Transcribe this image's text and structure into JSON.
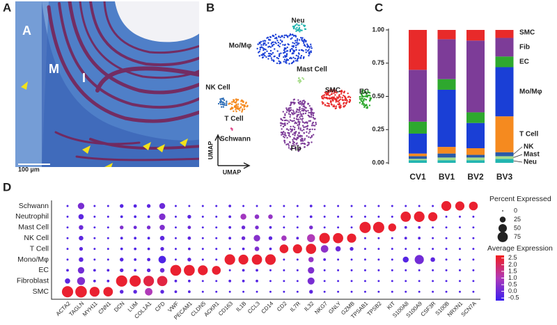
{
  "panel_labels": [
    "A",
    "B",
    "C",
    "D"
  ],
  "histology": {
    "labels": [
      "A",
      "M",
      "I"
    ],
    "scale_bar": "100 µm"
  },
  "chart_data": [
    {
      "type": "umap",
      "x_label": "UMAP",
      "y_label": "UMAP",
      "clusters": [
        {
          "name": "Neu",
          "color": "#22b5b0"
        },
        {
          "name": "Mo/Mφ",
          "color": "#1a3fd6"
        },
        {
          "name": "Mast Cell",
          "color": "#a6dc8a"
        },
        {
          "name": "NK Cell",
          "color": "#2a6bb5"
        },
        {
          "name": "T Cell",
          "color": "#f58a1f"
        },
        {
          "name": "SMC",
          "color": "#e82a2a"
        },
        {
          "name": "EC",
          "color": "#2ea82e"
        },
        {
          "name": "Fib",
          "color": "#7d3c98"
        },
        {
          "name": "Schwann",
          "color": "#e05090"
        }
      ]
    },
    {
      "type": "stacked_bar",
      "categories": [
        "CV1",
        "BV1",
        "BV2",
        "BV3"
      ],
      "ylim": [
        0,
        1
      ],
      "yticks": [
        {
          "value": 0,
          "label": "0.00"
        },
        {
          "value": 0.25,
          "label": "0.25"
        },
        {
          "value": 0.5,
          "label": "0.50"
        },
        {
          "value": 0.75,
          "label": "0.75"
        },
        {
          "value": 1,
          "label": "1.00"
        }
      ],
      "series": [
        {
          "name": "Neu",
          "color": "#22b5b0",
          "values": [
            0.02,
            0.02,
            0.02,
            0.03
          ]
        },
        {
          "name": "Mast",
          "color": "#a6dc8a",
          "values": [
            0.01,
            0.02,
            0.02,
            0.02
          ]
        },
        {
          "name": "NK",
          "color": "#2a5aa8",
          "values": [
            0.02,
            0.03,
            0.02,
            0.03
          ]
        },
        {
          "name": "T Cell",
          "color": "#f58a1f",
          "values": [
            0.02,
            0.05,
            0.05,
            0.27
          ]
        },
        {
          "name": "Mo/Mφ",
          "color": "#1a3fd6",
          "values": [
            0.15,
            0.43,
            0.19,
            0.37
          ]
        },
        {
          "name": "EC",
          "color": "#2ea82e",
          "values": [
            0.09,
            0.08,
            0.08,
            0.08
          ]
        },
        {
          "name": "Fib",
          "color": "#7d3c98",
          "values": [
            0.39,
            0.3,
            0.54,
            0.14
          ]
        },
        {
          "name": "SMC",
          "color": "#e82a2a",
          "values": [
            0.3,
            0.07,
            0.08,
            0.06
          ]
        }
      ]
    },
    {
      "type": "dotplot",
      "rows": [
        "Schwann",
        "Neutrophil",
        "Mast Cell",
        "NK Cell",
        "T Cell",
        "Mono/Mφ",
        "EC",
        "Fibroblast",
        "SMC"
      ],
      "columns": [
        "ACTA2",
        "TAGLN",
        "MYH11",
        "CNN1",
        "DCN",
        "LUM",
        "COL1A1",
        "CFD",
        "VWF",
        "PECAM1",
        "CLDN5",
        "ACKR1",
        "CD163",
        "IL1B",
        "CCL3",
        "CD14",
        "CD2",
        "IL7R",
        "IL32",
        "NKG7",
        "GNLY",
        "GZMB",
        "TPSAB1",
        "TPSB2",
        "KIT",
        "S100A8",
        "S100A9",
        "CSF3R",
        "S100B",
        "NRXN1",
        "SCN7A"
      ],
      "pct": [
        [
          3,
          30,
          3,
          3,
          10,
          8,
          10,
          25,
          3,
          3,
          3,
          3,
          5,
          3,
          3,
          3,
          3,
          3,
          5,
          3,
          3,
          3,
          3,
          3,
          3,
          3,
          3,
          3,
          70,
          60,
          55
        ],
        [
          3,
          20,
          3,
          3,
          5,
          5,
          5,
          30,
          3,
          10,
          3,
          3,
          5,
          25,
          15,
          15,
          3,
          3,
          5,
          3,
          3,
          3,
          3,
          3,
          3,
          75,
          80,
          60,
          3,
          3,
          3
        ],
        [
          3,
          15,
          3,
          3,
          10,
          8,
          10,
          20,
          3,
          8,
          3,
          3,
          5,
          10,
          10,
          5,
          3,
          3,
          10,
          3,
          3,
          3,
          90,
          90,
          45,
          5,
          5,
          3,
          3,
          3,
          3
        ],
        [
          3,
          15,
          3,
          3,
          5,
          5,
          5,
          15,
          3,
          8,
          3,
          3,
          5,
          10,
          30,
          10,
          20,
          5,
          45,
          80,
          75,
          60,
          3,
          3,
          3,
          5,
          5,
          3,
          3,
          3,
          3
        ],
        [
          3,
          10,
          3,
          3,
          5,
          5,
          5,
          10,
          3,
          5,
          3,
          3,
          3,
          5,
          15,
          5,
          55,
          60,
          75,
          40,
          20,
          10,
          3,
          3,
          3,
          3,
          3,
          3,
          3,
          3,
          3
        ],
        [
          3,
          15,
          3,
          3,
          10,
          5,
          8,
          40,
          3,
          10,
          3,
          3,
          80,
          70,
          75,
          80,
          3,
          3,
          20,
          5,
          3,
          3,
          3,
          3,
          3,
          25,
          60,
          15,
          3,
          3,
          3
        ],
        [
          5,
          30,
          5,
          5,
          10,
          5,
          10,
          15,
          85,
          85,
          70,
          55,
          3,
          5,
          5,
          3,
          3,
          3,
          30,
          3,
          3,
          3,
          3,
          3,
          3,
          3,
          3,
          3,
          3,
          3,
          3
        ],
        [
          20,
          45,
          5,
          5,
          90,
          90,
          80,
          75,
          5,
          5,
          3,
          3,
          5,
          5,
          5,
          3,
          3,
          3,
          35,
          3,
          3,
          3,
          3,
          3,
          3,
          3,
          3,
          3,
          3,
          3,
          3
        ],
        [
          90,
          95,
          70,
          65,
          10,
          10,
          40,
          10,
          5,
          5,
          3,
          3,
          3,
          3,
          3,
          3,
          3,
          3,
          10,
          3,
          3,
          3,
          3,
          3,
          3,
          3,
          3,
          3,
          3,
          3,
          3
        ]
      ],
      "expr": [
        [
          -0.4,
          0.2,
          -0.4,
          -0.4,
          -0.3,
          -0.3,
          -0.2,
          0,
          -0.4,
          -0.4,
          -0.4,
          -0.4,
          -0.3,
          -0.4,
          -0.4,
          -0.4,
          -0.4,
          -0.4,
          -0.3,
          -0.4,
          -0.4,
          -0.4,
          -0.4,
          -0.4,
          -0.4,
          -0.4,
          -0.4,
          -0.4,
          2.5,
          2.5,
          2.5
        ],
        [
          -0.4,
          -0.2,
          -0.4,
          -0.4,
          -0.4,
          -0.4,
          -0.4,
          0.3,
          -0.4,
          -0.2,
          -0.4,
          -0.4,
          -0.3,
          0.8,
          0.5,
          0.6,
          -0.4,
          -0.4,
          -0.3,
          -0.4,
          -0.4,
          -0.4,
          -0.4,
          -0.4,
          -0.4,
          2.5,
          2.5,
          2.5,
          -0.4,
          -0.4,
          -0.4
        ],
        [
          -0.4,
          0,
          -0.4,
          -0.4,
          0.3,
          0,
          0.2,
          0.3,
          -0.4,
          0,
          -0.4,
          -0.4,
          -0.3,
          0,
          0.2,
          -0.3,
          -0.4,
          -0.4,
          0.2,
          -0.4,
          -0.4,
          -0.4,
          2.5,
          2.5,
          2.5,
          -0.3,
          -0.3,
          -0.4,
          -0.4,
          -0.4,
          -0.4
        ],
        [
          -0.4,
          -0.2,
          -0.4,
          -0.4,
          -0.4,
          -0.4,
          -0.4,
          -0.2,
          -0.4,
          -0.2,
          -0.4,
          -0.4,
          -0.3,
          0,
          0.4,
          -0.2,
          0.8,
          -0.2,
          1,
          2.5,
          2.5,
          2.5,
          -0.4,
          -0.4,
          -0.4,
          -0.3,
          -0.3,
          -0.4,
          -0.4,
          -0.4,
          -0.4
        ],
        [
          -0.4,
          -0.2,
          -0.4,
          -0.4,
          -0.4,
          -0.4,
          -0.4,
          -0.2,
          -0.4,
          -0.3,
          -0.4,
          -0.4,
          -0.4,
          -0.3,
          0.3,
          -0.3,
          2.5,
          2.5,
          2.5,
          0.5,
          0,
          -0.2,
          -0.4,
          -0.4,
          -0.4,
          -0.4,
          -0.4,
          -0.4,
          -0.4,
          -0.4,
          -0.4
        ],
        [
          -0.4,
          -0.2,
          -0.4,
          -0.4,
          -0.3,
          -0.4,
          -0.3,
          -0.4,
          -0.4,
          -0.2,
          -0.4,
          -0.4,
          2.5,
          2.5,
          2.5,
          2.5,
          -0.4,
          -0.4,
          0.6,
          -0.3,
          -0.4,
          -0.4,
          -0.4,
          -0.4,
          -0.4,
          -0.3,
          0.1,
          -0.2,
          -0.4,
          -0.4,
          -0.4
        ],
        [
          -0.3,
          0.1,
          -0.3,
          -0.3,
          -0.2,
          -0.3,
          -0.2,
          0,
          2.5,
          2.5,
          2.5,
          2.5,
          -0.4,
          -0.3,
          -0.3,
          -0.4,
          -0.4,
          -0.4,
          0.3,
          -0.4,
          -0.4,
          -0.4,
          -0.4,
          -0.4,
          -0.4,
          -0.4,
          -0.4,
          -0.4,
          -0.4,
          -0.4,
          -0.4
        ],
        [
          -0.2,
          0.3,
          -0.3,
          -0.3,
          2.5,
          2.5,
          2.3,
          2.3,
          -0.3,
          -0.3,
          -0.4,
          -0.4,
          -0.3,
          -0.3,
          -0.3,
          -0.4,
          -0.4,
          -0.4,
          0.2,
          -0.4,
          -0.4,
          -0.4,
          -0.4,
          -0.4,
          -0.4,
          -0.4,
          -0.4,
          -0.4,
          -0.4,
          -0.4,
          -0.4
        ],
        [
          2.5,
          2.5,
          2.5,
          2.5,
          -0.2,
          -0.2,
          1,
          -0.2,
          -0.3,
          -0.3,
          -0.4,
          -0.4,
          -0.4,
          -0.4,
          -0.4,
          -0.4,
          -0.4,
          -0.4,
          -0.2,
          -0.4,
          -0.4,
          -0.4,
          -0.4,
          -0.4,
          -0.4,
          -0.4,
          -0.4,
          -0.4,
          -0.4,
          -0.4,
          -0.4
        ]
      ],
      "size_title": "Percent Expressed",
      "size_max": 100,
      "size_ticks": [
        0,
        25,
        50,
        75
      ],
      "color_title": "Average Expression",
      "clim": [
        -0.7,
        2.7
      ],
      "colors": [
        "#3a1ff0",
        "#b03ab8",
        "#f21e1e"
      ],
      "color_ticks": [
        {
          "value": 2.5,
          "label": "2.5"
        },
        {
          "value": 2,
          "label": "2.0"
        },
        {
          "value": 1.5,
          "label": "1.5"
        },
        {
          "value": 1,
          "label": "1.0"
        },
        {
          "value": 0.5,
          "label": "0.5"
        },
        {
          "value": 0,
          "label": "0.0"
        },
        -0.5
      ]
    }
  ]
}
